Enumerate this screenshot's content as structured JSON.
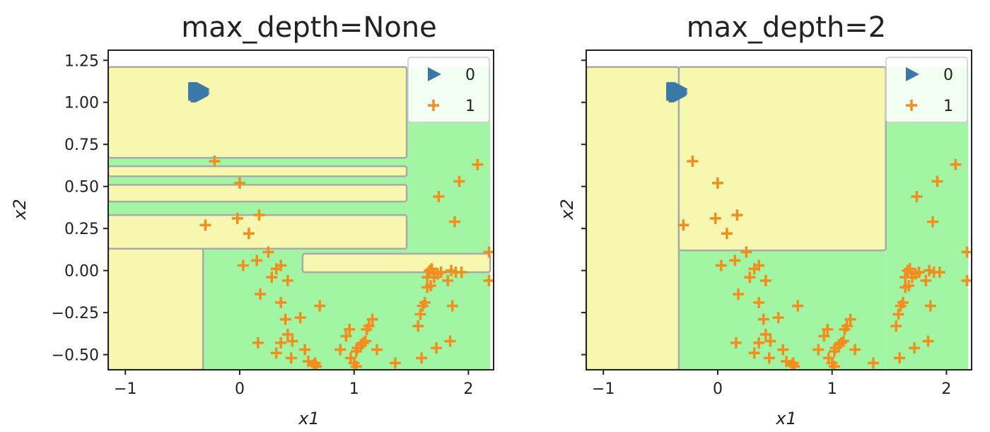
{
  "colors": {
    "class0_region": "#f7f7b0",
    "class1_region": "#a2f5a2",
    "boundary": "#aaaaaa",
    "class0_marker": "#3a78a8",
    "class1_marker": "#f28e1f",
    "legend_frame": "#cccccc"
  },
  "chart_data": [
    {
      "type": "scatter",
      "title": "max_depth=None",
      "xlabel": "x1",
      "ylabel": "x2",
      "xlim": [
        -1.15,
        2.22
      ],
      "ylim": [
        -0.59,
        1.31
      ],
      "xticks": [
        -1,
        0,
        1,
        2
      ],
      "yticks": [
        -0.5,
        -0.25,
        0.0,
        0.25,
        0.5,
        0.75,
        1.0,
        1.25
      ],
      "xtick_labels": [
        "−1",
        "0",
        "1",
        "2"
      ],
      "ytick_labels": [
        "−0.50",
        "−0.25",
        "0.00",
        "0.25",
        "0.50",
        "0.75",
        "1.00",
        "1.25"
      ],
      "grid": false,
      "legend": {
        "placement": "top-right",
        "entries": [
          {
            "label": "0",
            "marker": "triangle-right"
          },
          {
            "label": "1",
            "marker": "plus"
          }
        ]
      },
      "decision_regions": {
        "class0_rects": [
          [
            -1.15,
            1.46,
            0.67,
            1.21
          ],
          [
            -1.15,
            1.46,
            0.56,
            0.62
          ],
          [
            -1.15,
            1.46,
            0.41,
            0.51
          ],
          [
            -1.15,
            1.46,
            0.13,
            0.33
          ],
          [
            -1.15,
            -0.32,
            -0.59,
            0.13
          ],
          [
            0.55,
            2.19,
            -0.01,
            0.1
          ]
        ],
        "class1_rects": [
          [
            1.46,
            2.19,
            -0.59,
            1.21
          ],
          [
            -1.15,
            1.46,
            0.62,
            0.67
          ],
          [
            -1.15,
            1.46,
            0.51,
            0.56
          ],
          [
            -1.15,
            1.46,
            0.33,
            0.41
          ],
          [
            -0.32,
            2.19,
            -0.59,
            0.13
          ]
        ]
      },
      "series": [
        {
          "name": "0",
          "points": [
            [
              -0.37,
              1.07
            ],
            [
              -0.33,
              1.05
            ],
            [
              -0.36,
              1.06
            ],
            [
              -0.38,
              1.07
            ],
            [
              -0.35,
              1.08
            ],
            [
              -0.4,
              1.07
            ],
            [
              -0.34,
              1.08
            ],
            [
              -0.36,
              1.04
            ],
            [
              -0.39,
              1.06
            ],
            [
              -0.36,
              1.07
            ],
            [
              -0.37,
              1.05
            ],
            [
              -0.35,
              1.06
            ],
            [
              -0.38,
              1.05
            ],
            [
              -0.34,
              1.04
            ],
            [
              -0.36,
              1.08
            ],
            [
              -0.4,
              1.05
            ],
            [
              -0.37,
              1.06
            ],
            [
              -0.35,
              1.07
            ],
            [
              -0.33,
              1.06
            ],
            [
              -0.38,
              1.08
            ],
            [
              -0.36,
              1.05
            ],
            [
              -0.34,
              1.07
            ],
            [
              -0.39,
              1.08
            ],
            [
              -0.37,
              1.04
            ],
            [
              -0.35,
              1.05
            ],
            [
              -0.36,
              1.06
            ],
            [
              -0.38,
              1.06
            ],
            [
              -0.33,
              1.07
            ],
            [
              -0.37,
              1.08
            ],
            [
              -0.35,
              1.04
            ],
            [
              -0.39,
              1.05
            ],
            [
              -0.34,
              1.06
            ],
            [
              -0.36,
              1.07
            ],
            [
              -0.38,
              1.04
            ],
            [
              -0.35,
              1.06
            ],
            [
              -0.4,
              1.06
            ],
            [
              -0.37,
              1.07
            ],
            [
              -0.33,
              1.05
            ],
            [
              -0.36,
              1.08
            ],
            [
              -0.38,
              1.07
            ],
            [
              -0.34,
              1.05
            ],
            [
              -0.39,
              1.07
            ],
            [
              -0.35,
              1.08
            ],
            [
              -0.37,
              1.05
            ],
            [
              -0.36,
              1.04
            ],
            [
              -0.38,
              1.06
            ],
            [
              -0.33,
              1.08
            ],
            [
              -0.4,
              1.08
            ],
            [
              -0.35,
              1.07
            ],
            [
              -0.36,
              1.05
            ]
          ]
        },
        {
          "name": "1",
          "points": [
            [
              -0.22,
              0.65
            ],
            [
              0.0,
              0.52
            ],
            [
              -0.3,
              0.27
            ],
            [
              0.17,
              0.33
            ],
            [
              -0.02,
              0.31
            ],
            [
              0.08,
              0.22
            ],
            [
              0.25,
              0.11
            ],
            [
              0.03,
              0.03
            ],
            [
              0.15,
              0.06
            ],
            [
              0.32,
              0.01
            ],
            [
              0.36,
              0.03
            ],
            [
              0.42,
              -0.06
            ],
            [
              0.28,
              -0.04
            ],
            [
              0.18,
              -0.14
            ],
            [
              0.36,
              -0.19
            ],
            [
              0.4,
              -0.29
            ],
            [
              0.42,
              -0.38
            ],
            [
              0.53,
              -0.28
            ],
            [
              0.7,
              -0.21
            ],
            [
              0.66,
              -0.55
            ],
            [
              0.65,
              -0.56
            ],
            [
              0.67,
              -0.57
            ],
            [
              0.6,
              -0.54
            ],
            [
              0.57,
              -0.47
            ],
            [
              0.46,
              -0.42
            ],
            [
              0.45,
              -0.52
            ],
            [
              0.36,
              -0.43
            ],
            [
              0.16,
              -0.43
            ],
            [
              0.32,
              -0.49
            ],
            [
              0.88,
              -0.47
            ],
            [
              0.97,
              -0.52
            ],
            [
              1.0,
              -0.55
            ],
            [
              1.02,
              -0.48
            ],
            [
              1.03,
              -0.46
            ],
            [
              1.06,
              -0.44
            ],
            [
              1.08,
              -0.43
            ],
            [
              1.1,
              -0.42
            ],
            [
              1.13,
              -0.33
            ],
            [
              1.11,
              -0.35
            ],
            [
              1.16,
              -0.29
            ],
            [
              0.96,
              -0.35
            ],
            [
              0.93,
              -0.39
            ],
            [
              1.02,
              -0.57
            ],
            [
              1.2,
              -0.47
            ],
            [
              1.36,
              -0.55
            ],
            [
              1.58,
              -0.26
            ],
            [
              1.6,
              -0.21
            ],
            [
              1.64,
              -0.1
            ],
            [
              1.62,
              -0.19
            ],
            [
              1.64,
              -0.04
            ],
            [
              1.66,
              0.0
            ],
            [
              1.68,
              0.01
            ],
            [
              1.76,
              -0.01
            ],
            [
              1.82,
              -0.06
            ],
            [
              1.86,
              -0.21
            ],
            [
              1.84,
              -0.42
            ],
            [
              1.72,
              -0.46
            ],
            [
              1.59,
              -0.52
            ],
            [
              1.74,
              0.44
            ],
            [
              1.88,
              0.29
            ],
            [
              1.92,
              0.53
            ],
            [
              2.08,
              0.63
            ],
            [
              2.18,
              0.11
            ],
            [
              2.18,
              -0.06
            ],
            [
              1.85,
              0.0
            ],
            [
              1.89,
              -0.01
            ],
            [
              1.94,
              -0.01
            ],
            [
              1.73,
              -0.02
            ],
            [
              1.7,
              -0.04
            ],
            [
              1.67,
              -0.09
            ],
            [
              1.56,
              -0.33
            ]
          ]
        }
      ]
    },
    {
      "type": "scatter",
      "title": "max_depth=2",
      "xlabel": "x1",
      "ylabel": "x2",
      "xlim": [
        -1.15,
        2.22
      ],
      "ylim": [
        -0.59,
        1.31
      ],
      "xticks": [
        -1,
        0,
        1,
        2
      ],
      "yticks": [
        -0.5,
        -0.25,
        0.0,
        0.25,
        0.5,
        0.75,
        1.0,
        1.25
      ],
      "xtick_labels": [
        "−1",
        "0",
        "1",
        "2"
      ],
      "ytick_labels": [],
      "grid": false,
      "legend": {
        "placement": "top-right",
        "entries": [
          {
            "label": "0",
            "marker": "triangle-right"
          },
          {
            "label": "1",
            "marker": "plus"
          }
        ]
      },
      "decision_regions": {
        "class0_rects": [
          [
            -1.15,
            -0.34,
            -0.59,
            1.21
          ],
          [
            -0.34,
            1.47,
            0.12,
            1.21
          ]
        ],
        "class1_rects": [
          [
            1.47,
            2.19,
            -0.59,
            1.21
          ],
          [
            -0.34,
            1.47,
            -0.59,
            0.12
          ]
        ]
      },
      "series": [
        {
          "name": "0",
          "points": "same-as-left"
        },
        {
          "name": "1",
          "points": "same-as-left"
        }
      ]
    }
  ]
}
